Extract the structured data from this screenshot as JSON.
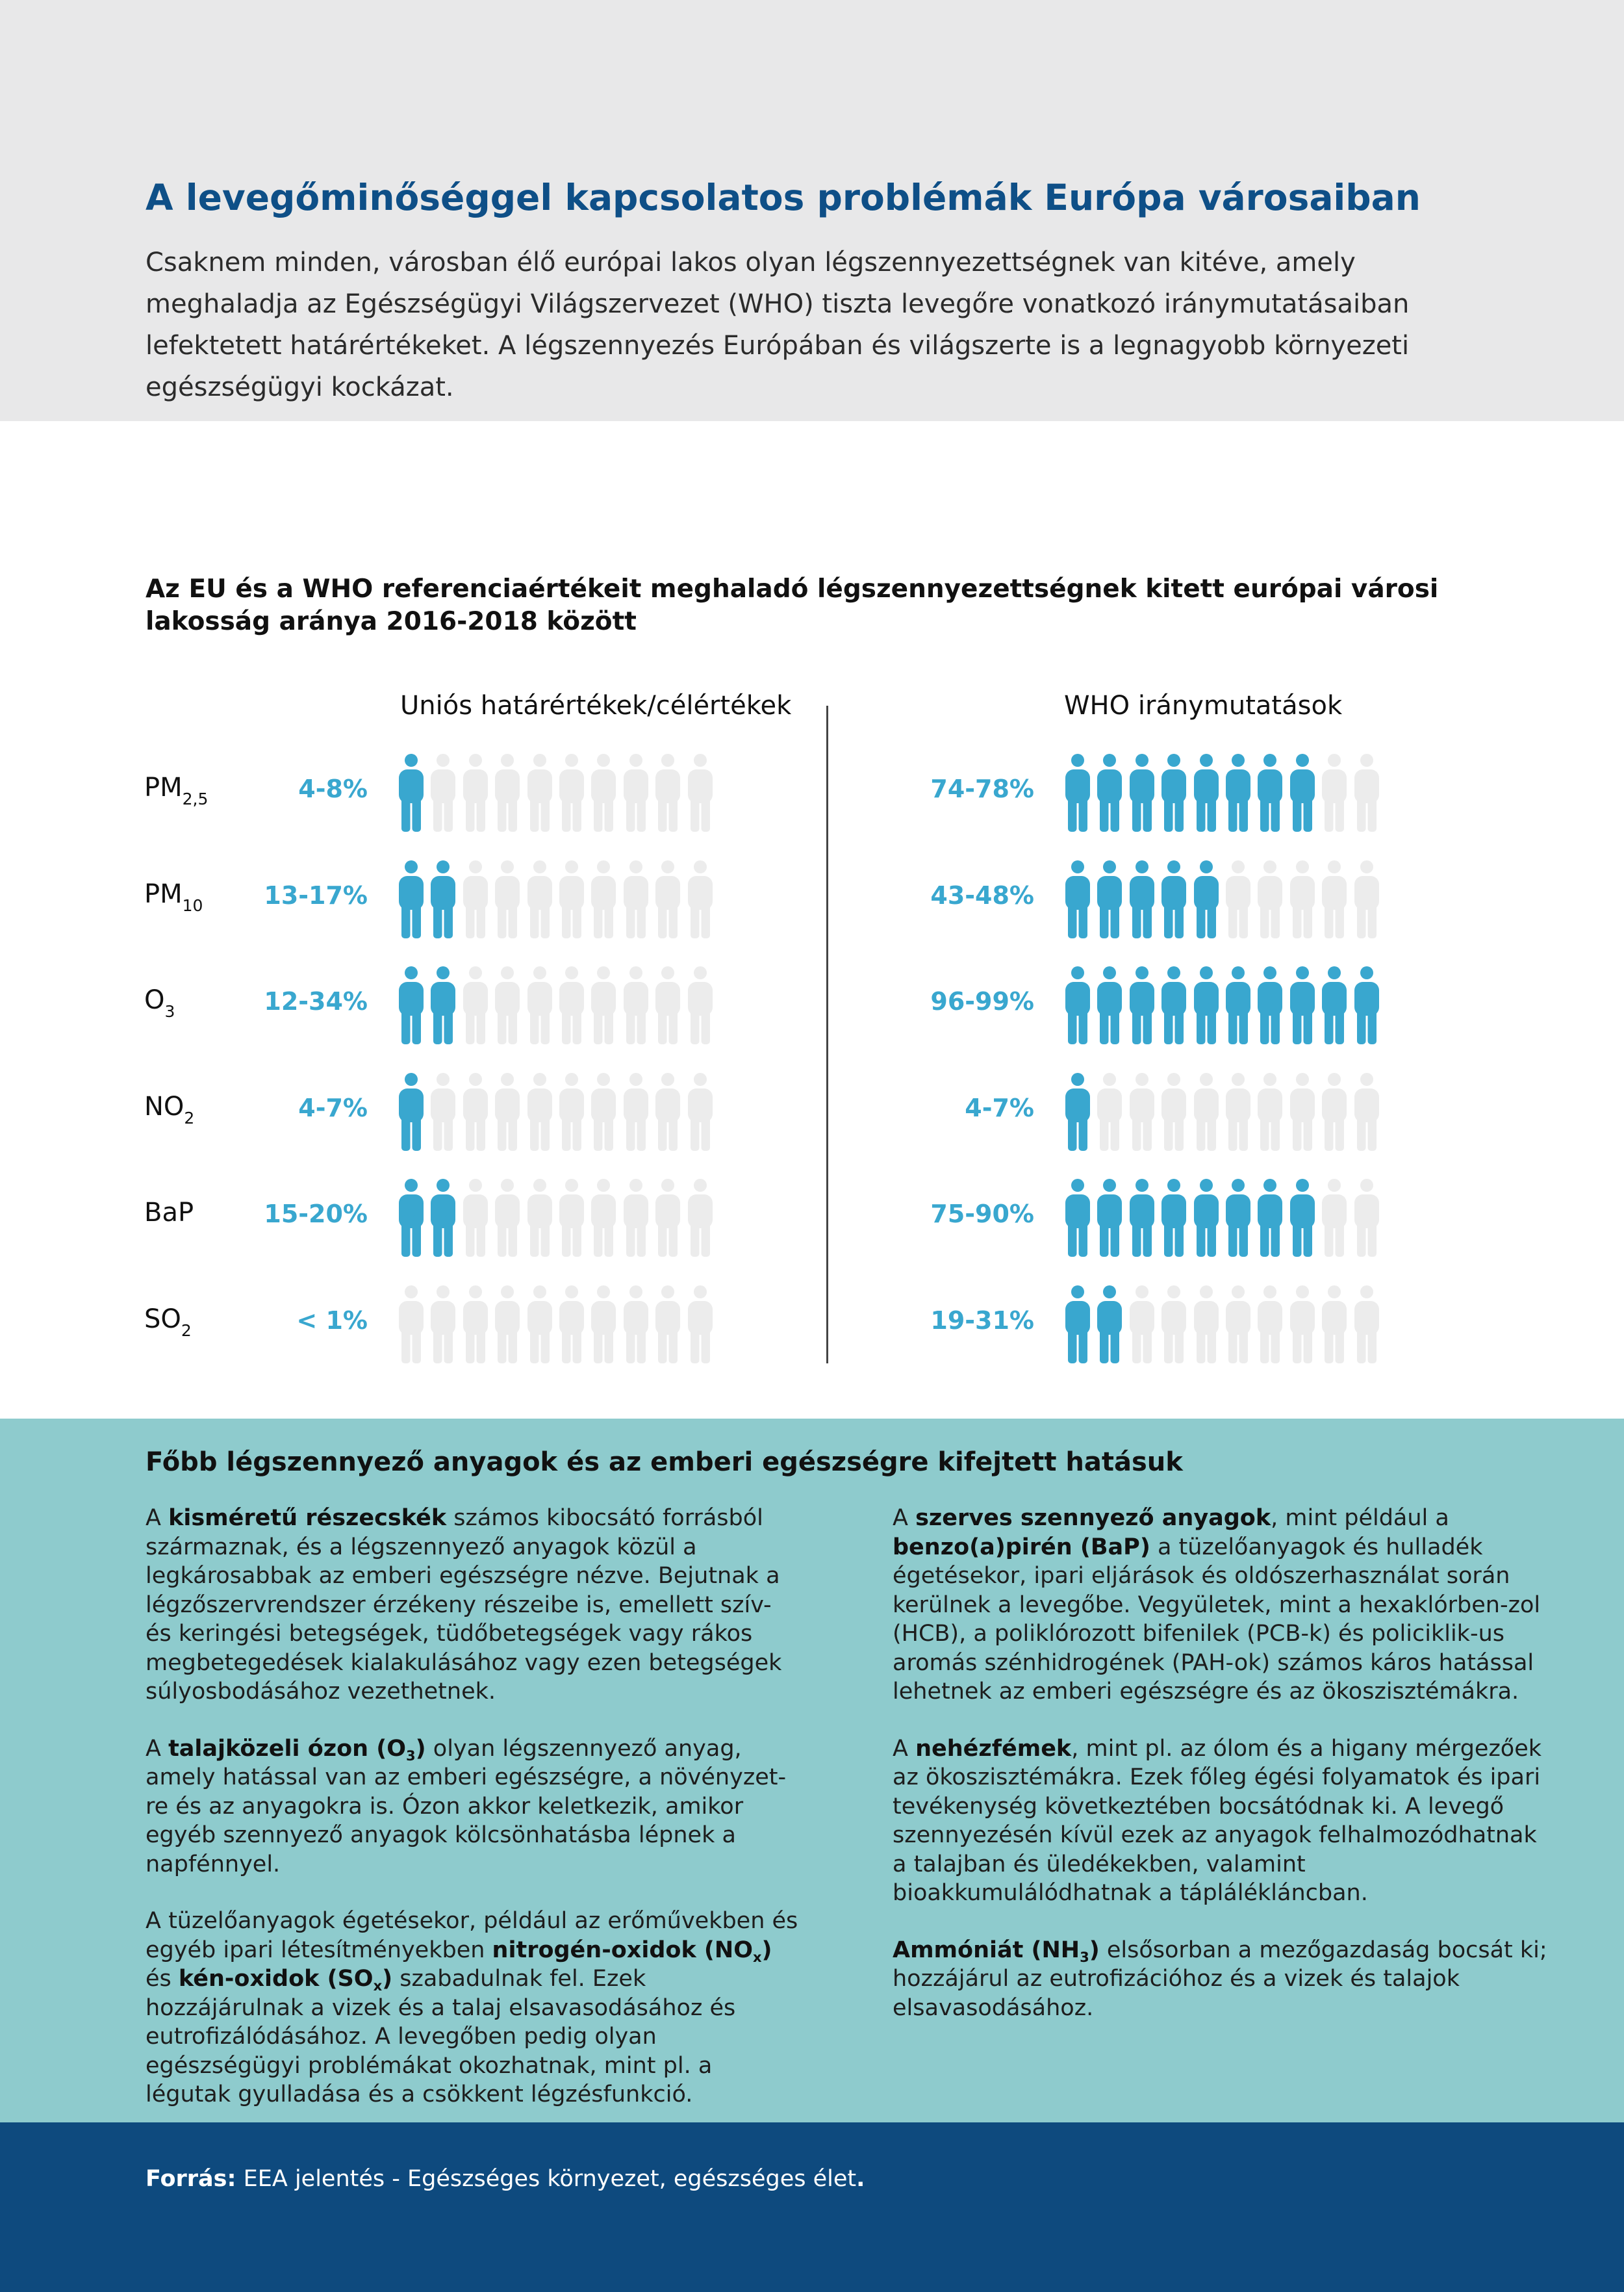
{
  "colors": {
    "accent": "#39a7cf",
    "inactive": "#ececec",
    "title": "#0e4f87",
    "panel": "#8ecbcd",
    "footer": "#0e4a7e",
    "header": "#e8e8e9"
  },
  "header": {
    "title": "A levegőminőséggel kapcsolatos problémák Európa városaiban",
    "intro": "Csaknem minden, városban élő európai lakos olyan légszennyezettségnek van kitéve, amely meghaladja az Egészségügyi Világszervezet (WHO) tiszta levegőre vonatkozó iránymutatásaiban lefektetett határértékeket. A légszennyezés Európában és világszerte is a legnagyobb környezeti egészségügyi kockázat."
  },
  "chart_data": {
    "type": "pictogram",
    "title": "Az EU és a WHO referenciaértékeit meghaladó légszennyezettségnek kitett európai városi lakosság aránya 2016-2018 között",
    "icons_per_row": 10,
    "groups": [
      {
        "name": "Uniós határértékek/célértékek"
      },
      {
        "name": "WHO iránymutatások"
      }
    ],
    "rows": [
      {
        "base": "PM",
        "sub": "2,5",
        "eu": {
          "label": "4-8%",
          "filled": 1
        },
        "who": {
          "label": "74-78%",
          "filled": 8
        }
      },
      {
        "base": "PM",
        "sub": "10",
        "eu": {
          "label": "13-17%",
          "filled": 2
        },
        "who": {
          "label": "43-48%",
          "filled": 5
        }
      },
      {
        "base": "O",
        "sub": "3",
        "eu": {
          "label": "12-34%",
          "filled": 2
        },
        "who": {
          "label": "96-99%",
          "filled": 10
        }
      },
      {
        "base": "NO",
        "sub": "2",
        "eu": {
          "label": "4-7%",
          "filled": 1
        },
        "who": {
          "label": "4-7%",
          "filled": 1
        }
      },
      {
        "base": "BaP",
        "sub": "",
        "eu": {
          "label": "15-20%",
          "filled": 2
        },
        "who": {
          "label": "75-90%",
          "filled": 8
        }
      },
      {
        "base": "SO",
        "sub": "2",
        "eu": {
          "label": "< 1%",
          "filled": 0
        },
        "who": {
          "label": "19-31%",
          "filled": 2
        }
      }
    ]
  },
  "info": {
    "title": "Főbb légszennyező anyagok és az emberi egészségre kifejtett hatásuk",
    "left": {
      "p1_pre": "A ",
      "p1_bold": "kisméretű részecskék",
      "p1_post": " számos kibocsátó forrásból származnak, és a légszennyező anyagok közül a legkárosabbak az emberi egészségre nézve. Bejutnak a légzőszervrendszer érzékeny részeibe is, emellett szív- és keringési betegségek, tüdőbetegségek vagy rákos megbetegedések kialakulásához vagy ezen betegségek súlyosbodásához vezethetnek.",
      "p2_pre": "A ",
      "p2_bold": "talajközeli ózon (O",
      "p2_bold_sub": "3",
      "p2_bold_end": ")",
      "p2_post": " olyan légszennyező anyag, amely hatással van az emberi egészségre, a növényzet-re és az anyagokra is. Ózon akkor keletkezik, amikor egyéb szennyező anyagok kölcsönhatásba lépnek a napfénnyel.",
      "p3_pre": "A tüzelőanyagok égetésekor, például az erőművekben és egyéb ipari létesítményekben ",
      "p3_bold1": "nitrogén-oxidok (NO",
      "p3_sub1": "x",
      "p3_bold1_end": ")",
      "p3_mid": " és ",
      "p3_bold2": "kén-oxidok (SO",
      "p3_sub2": "x",
      "p3_bold2_end": ")",
      "p3_post": " szabadulnak fel. Ezek hozzájárulnak a vizek és a talaj elsavasodásához és eutrofizálódásához. A levegőben pedig olyan egészségügyi problémákat okozhatnak, mint pl. a légutak gyulladása és a csökkent légzésfunkció."
    },
    "right": {
      "p1_pre": "A ",
      "p1_bold1": "szerves szennyező anyagok",
      "p1_mid": ", mint például a ",
      "p1_bold2": "benzo(a)pirén (BaP)",
      "p1_post": " a tüzelőanyagok és hulladék égetésekor, ipari eljárások és oldószerhasználat során kerülnek a levegőbe. Vegyületek, mint a hexaklórben-zol (HCB), a poliklórozott bifenilek (PCB-k) és policiklik-us aromás szénhidrogének (PAH-ok) számos káros hatással lehetnek az emberi egészségre és az ökoszisztémákra.",
      "p2_pre": "A ",
      "p2_bold": "nehézfémek",
      "p2_post": ", mint pl. az ólom és a higany mérgezőek az ökoszisztémákra. Ezek főleg égési folyamatok és ipari tevékenység következtében bocsátódnak ki. A levegő szennyezésén kívül ezek az anyagok felhalmozódhatnak a talajban és üledékekben, valamint bioakkumulálódhatnak a táplálékláncban.",
      "p3_bold": "Ammóniát (NH",
      "p3_sub": "3",
      "p3_bold_end": ")",
      "p3_post": " elsősorban a mezőgazdaság bocsát ki; hozzájárul az eutrofizációhoz és a vizek és talajok elsavasodásához."
    }
  },
  "footer": {
    "source_label": "Forrás:",
    "source_text": " EEA jelentés - Egészséges környezet, egészséges élet",
    "source_end": "."
  }
}
